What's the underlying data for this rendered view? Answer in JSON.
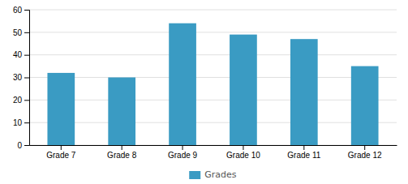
{
  "chart_data": {
    "type": "bar",
    "categories": [
      "Grade 7",
      "Grade 8",
      "Grade 9",
      "Grade 10",
      "Grade 11",
      "Grade 12"
    ],
    "series": [
      {
        "name": "Grades",
        "color": "#3a9bc3",
        "values": [
          32,
          30,
          54,
          49,
          47,
          35
        ]
      }
    ],
    "ylim": [
      0,
      60
    ],
    "yticks": [
      0,
      10,
      20,
      30,
      40,
      50,
      60
    ],
    "grid": true,
    "legend": "bottom"
  }
}
